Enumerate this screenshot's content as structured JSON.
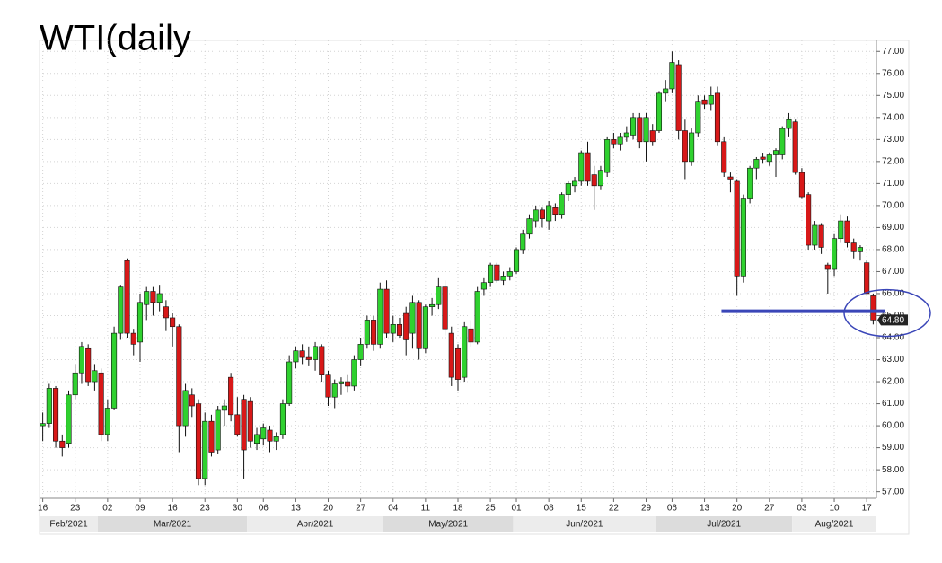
{
  "chart_data": {
    "type": "candlestick",
    "title": "WTI(daily",
    "x": [
      "2021-02-16",
      "2021-02-17",
      "2021-02-18",
      "2021-02-19",
      "2021-02-22",
      "2021-02-23",
      "2021-02-24",
      "2021-02-25",
      "2021-02-26",
      "2021-03-01",
      "2021-03-02",
      "2021-03-03",
      "2021-03-04",
      "2021-03-05",
      "2021-03-08",
      "2021-03-09",
      "2021-03-10",
      "2021-03-11",
      "2021-03-12",
      "2021-03-15",
      "2021-03-16",
      "2021-03-17",
      "2021-03-18",
      "2021-03-19",
      "2021-03-22",
      "2021-03-23",
      "2021-03-24",
      "2021-03-25",
      "2021-03-26",
      "2021-03-29",
      "2021-03-30",
      "2021-03-31",
      "2021-04-01",
      "2021-04-05",
      "2021-04-06",
      "2021-04-07",
      "2021-04-08",
      "2021-04-09",
      "2021-04-12",
      "2021-04-13",
      "2021-04-14",
      "2021-04-15",
      "2021-04-16",
      "2021-04-19",
      "2021-04-20",
      "2021-04-21",
      "2021-04-22",
      "2021-04-23",
      "2021-04-26",
      "2021-04-27",
      "2021-04-28",
      "2021-04-29",
      "2021-04-30",
      "2021-05-03",
      "2021-05-04",
      "2021-05-05",
      "2021-05-06",
      "2021-05-07",
      "2021-05-10",
      "2021-05-11",
      "2021-05-12",
      "2021-05-13",
      "2021-05-14",
      "2021-05-17",
      "2021-05-18",
      "2021-05-19",
      "2021-05-20",
      "2021-05-21",
      "2021-05-24",
      "2021-05-25",
      "2021-05-26",
      "2021-05-27",
      "2021-05-28",
      "2021-06-01",
      "2021-06-02",
      "2021-06-03",
      "2021-06-04",
      "2021-06-07",
      "2021-06-08",
      "2021-06-09",
      "2021-06-10",
      "2021-06-11",
      "2021-06-14",
      "2021-06-15",
      "2021-06-16",
      "2021-06-17",
      "2021-06-18",
      "2021-06-21",
      "2021-06-22",
      "2021-06-23",
      "2021-06-24",
      "2021-06-25",
      "2021-06-28",
      "2021-06-29",
      "2021-06-30",
      "2021-07-01",
      "2021-07-02",
      "2021-07-06",
      "2021-07-07",
      "2021-07-08",
      "2021-07-09",
      "2021-07-12",
      "2021-07-13",
      "2021-07-14",
      "2021-07-15",
      "2021-07-16",
      "2021-07-19",
      "2021-07-20",
      "2021-07-21",
      "2021-07-22",
      "2021-07-23",
      "2021-07-26",
      "2021-07-27",
      "2021-07-28",
      "2021-07-29",
      "2021-07-30",
      "2021-08-02",
      "2021-08-03",
      "2021-08-04",
      "2021-08-05",
      "2021-08-06",
      "2021-08-09",
      "2021-08-10",
      "2021-08-11",
      "2021-08-12",
      "2021-08-13",
      "2021-08-16",
      "2021-08-17",
      "2021-08-18"
    ],
    "open": [
      60.0,
      60.1,
      61.7,
      59.3,
      59.2,
      61.4,
      62.4,
      63.5,
      62.0,
      62.4,
      59.6,
      60.8,
      64.2,
      67.5,
      64.2,
      63.8,
      65.5,
      66.1,
      65.6,
      65.4,
      64.9,
      64.5,
      60.0,
      61.4,
      61.0,
      57.6,
      60.2,
      58.9,
      60.7,
      62.2,
      60.5,
      61.2,
      61.1,
      59.2,
      59.4,
      59.8,
      59.3,
      59.6,
      61.0,
      62.9,
      63.4,
      63.1,
      63.0,
      63.6,
      62.3,
      61.3,
      61.9,
      62.0,
      61.8,
      63.0,
      63.7,
      64.8,
      63.7,
      66.2,
      64.2,
      64.6,
      65.1,
      64.2,
      65.6,
      63.5,
      65.4,
      65.5,
      66.3,
      64.2,
      63.5,
      62.2,
      64.4,
      63.8,
      66.2,
      66.5,
      67.3,
      66.6,
      66.8,
      67.0,
      68.0,
      68.7,
      69.3,
      69.8,
      69.3,
      69.9,
      69.6,
      70.5,
      70.9,
      71.1,
      72.4,
      71.4,
      70.9,
      71.5,
      73.0,
      72.8,
      73.1,
      73.2,
      74.0,
      72.9,
      73.4,
      73.4,
      75.1,
      75.3,
      76.4,
      73.4,
      72.0,
      73.3,
      74.8,
      74.6,
      75.1,
      72.9,
      71.3,
      71.1,
      66.8,
      70.3,
      71.7,
      72.2,
      72.0,
      72.3,
      72.3,
      73.5,
      73.8,
      71.5,
      70.5,
      68.2,
      69.1,
      67.3,
      67.1,
      68.5,
      69.3,
      68.3,
      67.9,
      67.4,
      65.9
    ],
    "high": [
      60.6,
      61.9,
      61.8,
      59.6,
      61.6,
      62.8,
      63.8,
      63.7,
      62.8,
      62.6,
      61.2,
      64.5,
      66.4,
      67.6,
      64.4,
      66.0,
      66.3,
      66.3,
      66.4,
      65.7,
      65.1,
      64.6,
      61.9,
      61.7,
      61.2,
      60.6,
      60.5,
      60.9,
      61.2,
      62.4,
      61.3,
      61.4,
      61.3,
      59.9,
      60.1,
      60.0,
      59.7,
      61.2,
      63.2,
      63.6,
      63.7,
      63.6,
      63.8,
      63.7,
      62.5,
      62.1,
      62.2,
      62.3,
      63.2,
      64.0,
      65.0,
      65.0,
      66.5,
      66.6,
      65.0,
      64.9,
      65.4,
      65.9,
      65.7,
      65.5,
      65.8,
      66.7,
      66.6,
      64.5,
      63.7,
      64.7,
      64.8,
      66.3,
      66.7,
      67.4,
      67.4,
      67.0,
      67.2,
      68.1,
      68.9,
      69.6,
      70.0,
      69.9,
      70.2,
      70.1,
      70.6,
      71.1,
      71.3,
      72.5,
      72.9,
      71.8,
      71.8,
      73.1,
      73.3,
      73.3,
      73.6,
      74.2,
      74.2,
      74.2,
      73.7,
      75.2,
      75.7,
      77.0,
      76.6,
      73.9,
      73.5,
      75.0,
      75.0,
      75.4,
      75.4,
      73.1,
      71.5,
      71.2,
      70.5,
      71.8,
      72.2,
      72.4,
      72.4,
      72.6,
      73.6,
      74.2,
      73.9,
      71.7,
      70.6,
      69.3,
      69.2,
      67.4,
      68.7,
      69.6,
      69.5,
      68.5,
      68.2,
      67.5,
      66.0
    ],
    "low": [
      59.3,
      59.9,
      59.0,
      58.6,
      59.0,
      61.2,
      61.9,
      61.8,
      61.6,
      59.3,
      59.3,
      60.7,
      63.9,
      64.0,
      63.2,
      62.9,
      64.8,
      65.0,
      65.2,
      64.3,
      63.6,
      58.8,
      59.5,
      60.4,
      57.3,
      57.3,
      58.6,
      58.7,
      60.0,
      60.2,
      59.5,
      57.6,
      59.0,
      58.9,
      59.1,
      58.8,
      58.9,
      59.4,
      60.9,
      62.6,
      62.8,
      62.7,
      62.5,
      62.0,
      60.9,
      60.8,
      61.4,
      61.5,
      61.6,
      62.7,
      63.5,
      63.4,
      63.5,
      64.0,
      63.8,
      64.0,
      63.2,
      63.5,
      63.0,
      63.3,
      65.0,
      65.3,
      64.1,
      61.8,
      61.6,
      62.0,
      63.6,
      63.7,
      65.9,
      66.3,
      66.5,
      66.4,
      66.6,
      66.9,
      67.8,
      68.5,
      69.0,
      69.0,
      68.9,
      69.3,
      69.4,
      70.2,
      70.6,
      70.9,
      70.9,
      69.8,
      70.7,
      71.3,
      72.6,
      72.5,
      72.9,
      73.0,
      72.6,
      72.0,
      72.7,
      73.3,
      74.7,
      75.1,
      73.0,
      71.2,
      71.8,
      73.1,
      74.4,
      74.3,
      72.7,
      71.3,
      70.6,
      65.9,
      66.5,
      70.1,
      71.2,
      71.9,
      71.8,
      71.3,
      72.1,
      73.1,
      71.4,
      70.3,
      68.0,
      68.0,
      67.8,
      66.0,
      66.8,
      68.3,
      68.1,
      67.6,
      67.5,
      66.0,
      64.6
    ],
    "close": [
      60.1,
      61.7,
      59.3,
      59.0,
      61.4,
      62.4,
      63.6,
      62.0,
      62.5,
      59.6,
      60.8,
      64.2,
      66.3,
      64.2,
      63.7,
      65.6,
      66.1,
      65.6,
      66.0,
      64.9,
      64.5,
      60.0,
      61.6,
      60.9,
      57.6,
      60.2,
      58.8,
      60.7,
      60.9,
      60.5,
      59.6,
      58.9,
      59.3,
      59.6,
      59.9,
      59.3,
      59.5,
      61.0,
      62.9,
      63.4,
      63.1,
      63.0,
      63.6,
      62.3,
      61.3,
      61.9,
      62.0,
      61.8,
      63.0,
      63.7,
      64.8,
      63.7,
      66.2,
      64.2,
      64.6,
      64.1,
      63.9,
      65.6,
      63.5,
      65.4,
      65.5,
      66.3,
      64.4,
      62.2,
      62.1,
      64.5,
      63.8,
      66.1,
      66.5,
      67.3,
      66.6,
      66.8,
      67.0,
      68.0,
      68.7,
      69.4,
      69.8,
      69.4,
      70.0,
      69.6,
      70.5,
      71.0,
      71.1,
      72.4,
      71.1,
      70.9,
      71.6,
      73.0,
      72.8,
      73.1,
      73.3,
      74.0,
      72.9,
      74.0,
      72.9,
      75.1,
      75.3,
      76.5,
      73.4,
      72.0,
      73.3,
      74.7,
      74.6,
      75.0,
      72.9,
      71.5,
      71.2,
      66.8,
      70.3,
      71.7,
      72.1,
      72.1,
      72.3,
      72.5,
      73.5,
      73.9,
      71.5,
      70.4,
      68.2,
      69.1,
      68.1,
      67.1,
      68.5,
      69.3,
      68.3,
      67.9,
      68.1,
      66.0,
      64.8
    ],
    "up_color": "#2fd12f",
    "down_color": "#d81818",
    "ylim": [
      56.7,
      77.5
    ],
    "yticks": [
      {
        "value": 57,
        "label": "57.00"
      },
      {
        "value": 58,
        "label": "58.00"
      },
      {
        "value": 59,
        "label": "59.00"
      },
      {
        "value": 60,
        "label": "60.00"
      },
      {
        "value": 61,
        "label": "61.00"
      },
      {
        "value": 62,
        "label": "62.00"
      },
      {
        "value": 63,
        "label": "63.00"
      },
      {
        "value": 64,
        "label": "64.00"
      },
      {
        "value": 65,
        "label": "65.00"
      },
      {
        "value": 66,
        "label": "66.00"
      },
      {
        "value": 67,
        "label": "67.00"
      },
      {
        "value": 68,
        "label": "68.00"
      },
      {
        "value": 69,
        "label": "69.00"
      },
      {
        "value": 70,
        "label": "70.00"
      },
      {
        "value": 71,
        "label": "71.00"
      },
      {
        "value": 72,
        "label": "72.00"
      },
      {
        "value": 73,
        "label": "73.00"
      },
      {
        "value": 74,
        "label": "74.00"
      },
      {
        "value": 75,
        "label": "75.00"
      },
      {
        "value": 76,
        "label": "76.00"
      },
      {
        "value": 77,
        "label": "77.00"
      }
    ],
    "xticks": [
      {
        "value": "2021-02-16",
        "label": "16"
      },
      {
        "value": "2021-02-23",
        "label": "23"
      },
      {
        "value": "2021-03-02",
        "label": "02"
      },
      {
        "value": "2021-03-09",
        "label": "09"
      },
      {
        "value": "2021-03-16",
        "label": "16"
      },
      {
        "value": "2021-03-23",
        "label": "23"
      },
      {
        "value": "2021-03-30",
        "label": "30"
      },
      {
        "value": "2021-04-06",
        "label": "06"
      },
      {
        "value": "2021-04-13",
        "label": "13"
      },
      {
        "value": "2021-04-20",
        "label": "20"
      },
      {
        "value": "2021-04-27",
        "label": "27"
      },
      {
        "value": "2021-05-04",
        "label": "04"
      },
      {
        "value": "2021-05-11",
        "label": "11"
      },
      {
        "value": "2021-05-18",
        "label": "18"
      },
      {
        "value": "2021-05-25",
        "label": "25"
      },
      {
        "value": "2021-06-01",
        "label": "01"
      },
      {
        "value": "2021-06-08",
        "label": "08"
      },
      {
        "value": "2021-06-15",
        "label": "15"
      },
      {
        "value": "2021-06-22",
        "label": "22"
      },
      {
        "value": "2021-06-29",
        "label": "29"
      },
      {
        "value": "2021-07-06",
        "label": "06"
      },
      {
        "value": "2021-07-13",
        "label": "13"
      },
      {
        "value": "2021-07-20",
        "label": "20"
      },
      {
        "value": "2021-07-27",
        "label": "27"
      },
      {
        "value": "2021-08-03",
        "label": "03"
      },
      {
        "value": "2021-08-10",
        "label": "10"
      },
      {
        "value": "2021-08-17",
        "label": "17"
      }
    ],
    "months": [
      {
        "value": "2021-02",
        "label": "Feb/2021"
      },
      {
        "value": "2021-03",
        "label": "Mar/2021"
      },
      {
        "value": "2021-04",
        "label": "Apr/2021"
      },
      {
        "value": "2021-05",
        "label": "May/2021"
      },
      {
        "value": "2021-06",
        "label": "Jun/2021"
      },
      {
        "value": "2021-07",
        "label": "Jul/2021"
      },
      {
        "value": "2021-08",
        "label": "Aug/2021"
      }
    ],
    "grid": true,
    "last_price": {
      "value": 64.8,
      "label": "64.80"
    },
    "support": {
      "value": 65.2,
      "from": "2021-07-19",
      "color": "#3a46b8"
    }
  }
}
